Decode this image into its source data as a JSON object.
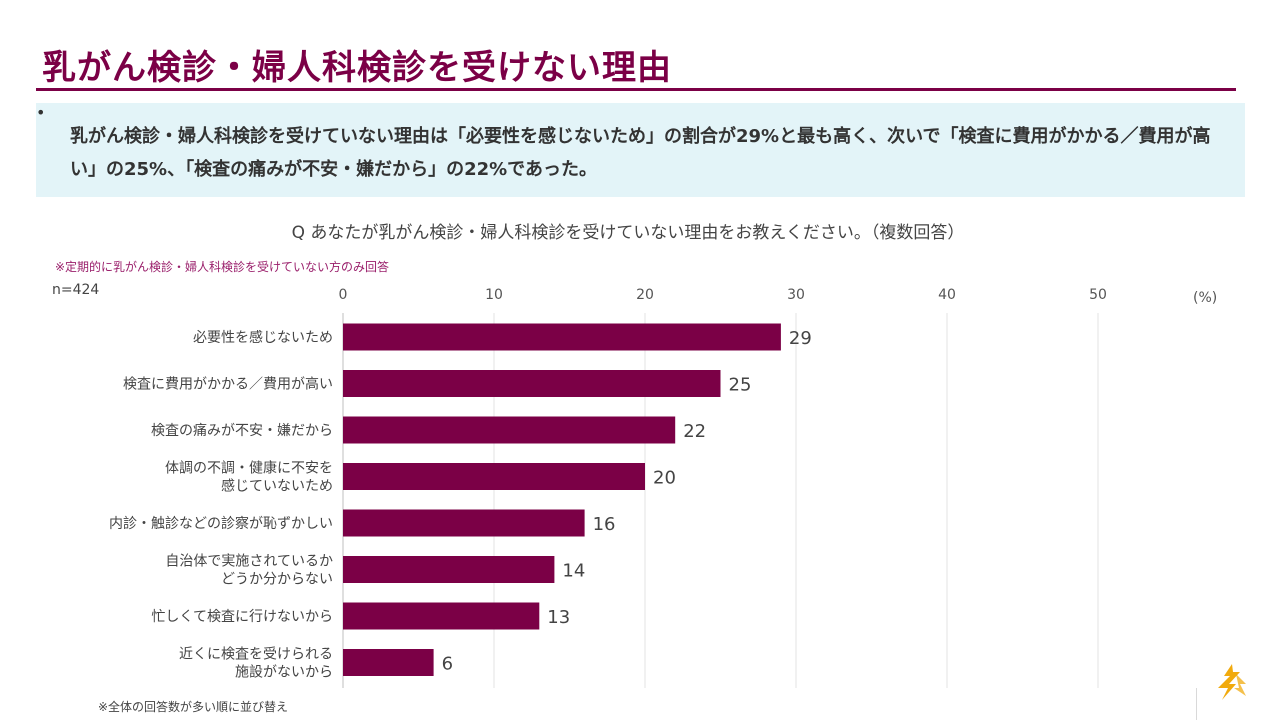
{
  "page": {
    "title": "乳がん検診・婦人科検診を受けない理由",
    "summary": "乳がん検診・婦人科検診を受けていない理由は「必要性を感じないため」の割合が29%と最も高く、次いで「検査に費用がかかる／費用が高い」の25%、「検査の痛みが不安・嫌だから」の22%であった。",
    "bullet": "•",
    "question": "Q あなたが乳がん検診・婦人科検診を受けていない理由をお教えください。（複数回答）",
    "note_top": "※定期的に乳がん検診・婦人科検診を受けていない方のみ回答",
    "n_label": "n=424",
    "unit_label": "(%)",
    "note_bottom": "※全体の回答数が多い順に並び替え"
  },
  "colors": {
    "accent": "#7b0046",
    "summary_bg": "#e3f4f8",
    "logo": "#f0a500"
  },
  "chart_data": {
    "type": "bar",
    "orientation": "horizontal",
    "categories": [
      "必要性を感じないため",
      "検査に費用がかかる／費用が高い",
      "検査の痛みが不安・嫌だから",
      "体調の不調・健康に不安を\n感じていないため",
      "内診・触診などの診察が恥ずかしい",
      "自治体で実施されているか\nどうか分からない",
      "忙しくて検査に行けないから",
      "近くに検査を受けられる\n施設がないから"
    ],
    "values": [
      29,
      25,
      22,
      20,
      16,
      14,
      13,
      6
    ],
    "xlim": [
      0,
      50
    ],
    "xticks": [
      0,
      10,
      20,
      30,
      40,
      50
    ],
    "grid": true,
    "bar_color": "#7b0046"
  }
}
